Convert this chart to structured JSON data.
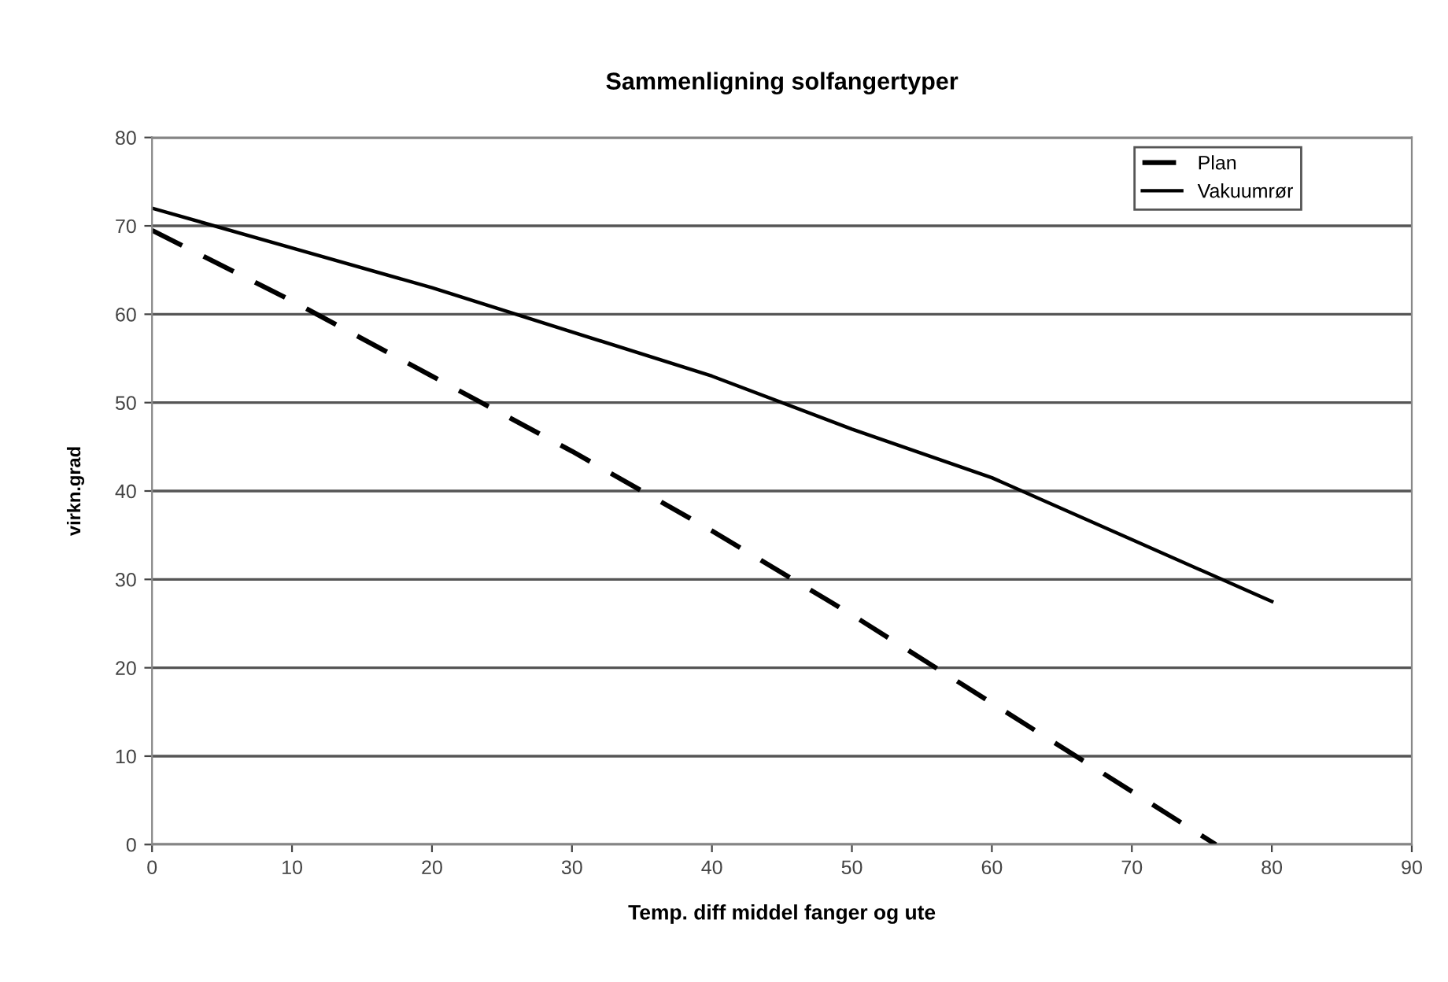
{
  "chart_data": {
    "type": "line",
    "title": "Sammenligning solfangertyper",
    "xlabel": "Temp. diff middel fanger og ute",
    "ylabel": "virkn.grad",
    "series": [
      {
        "name": "Plan",
        "color": "#000000",
        "line_style": "dashed",
        "x": [
          0,
          10,
          20,
          30,
          40,
          50,
          60,
          70,
          76
        ],
        "values": [
          69.5,
          61.5,
          53,
          44.5,
          35.5,
          26,
          16,
          6,
          0
        ]
      },
      {
        "name": "Vakuumrør",
        "color": "#000000",
        "line_style": "solid",
        "x": [
          0,
          10,
          20,
          30,
          40,
          50,
          60,
          70,
          80
        ],
        "values": [
          72,
          67.5,
          63,
          58,
          53,
          47,
          41.5,
          34.5,
          27.5
        ]
      }
    ],
    "xlim": [
      0,
      90
    ],
    "ylim": [
      0,
      80
    ],
    "xticks": [
      0,
      10,
      20,
      30,
      40,
      50,
      60,
      70,
      80,
      90
    ],
    "yticks": [
      0,
      10,
      20,
      30,
      40,
      50,
      60,
      70,
      80
    ],
    "grid": "y",
    "legend": "top right",
    "marker": "none"
  }
}
